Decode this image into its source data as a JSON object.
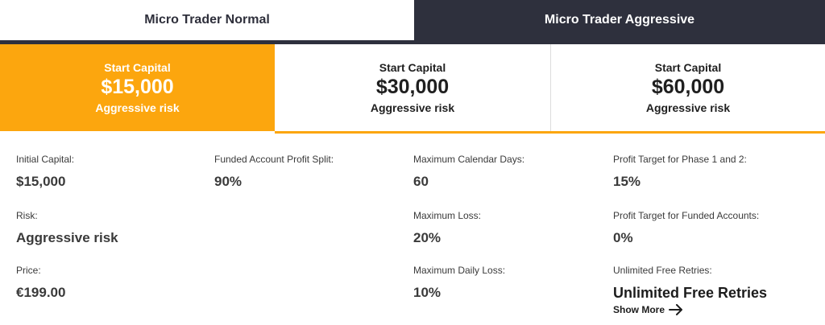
{
  "tabs": [
    {
      "label": "Micro Trader Normal",
      "active": false
    },
    {
      "label": "Micro Trader Aggressive",
      "active": true
    }
  ],
  "plans": [
    {
      "label": "Start Capital",
      "amount": "$15,000",
      "risk": "Aggressive risk",
      "selected": true
    },
    {
      "label": "Start Capital",
      "amount": "$30,000",
      "risk": "Aggressive risk",
      "selected": false
    },
    {
      "label": "Start Capital",
      "amount": "$60,000",
      "risk": "Aggressive risk",
      "selected": false
    }
  ],
  "details": {
    "initial_capital": {
      "label": "Initial Capital:",
      "value": "$15,000"
    },
    "risk": {
      "label": "Risk:",
      "value": "Aggressive risk"
    },
    "price": {
      "label": "Price:",
      "value": "€199.00"
    },
    "profit_split": {
      "label": "Funded Account Profit Split:",
      "value": "90%"
    },
    "max_calendar_days": {
      "label": "Maximum Calendar Days:",
      "value": "60"
    },
    "max_loss": {
      "label": "Maximum Loss:",
      "value": "20%"
    },
    "max_daily_loss": {
      "label": "Maximum Daily Loss:",
      "value": "10%"
    },
    "profit_target_phase": {
      "label": "Profit Target for Phase 1 and 2:",
      "value": "15%"
    },
    "profit_target_funded": {
      "label": "Profit Target for Funded Accounts:",
      "value": "0%"
    },
    "free_retries": {
      "label": "Unlimited Free Retries:",
      "value": "Unlimited Free Retries"
    }
  },
  "show_more": {
    "label": "Show More",
    "icon": "arrow-right-icon"
  },
  "colors": {
    "accent": "#fca60e",
    "dark": "#2e303d"
  }
}
